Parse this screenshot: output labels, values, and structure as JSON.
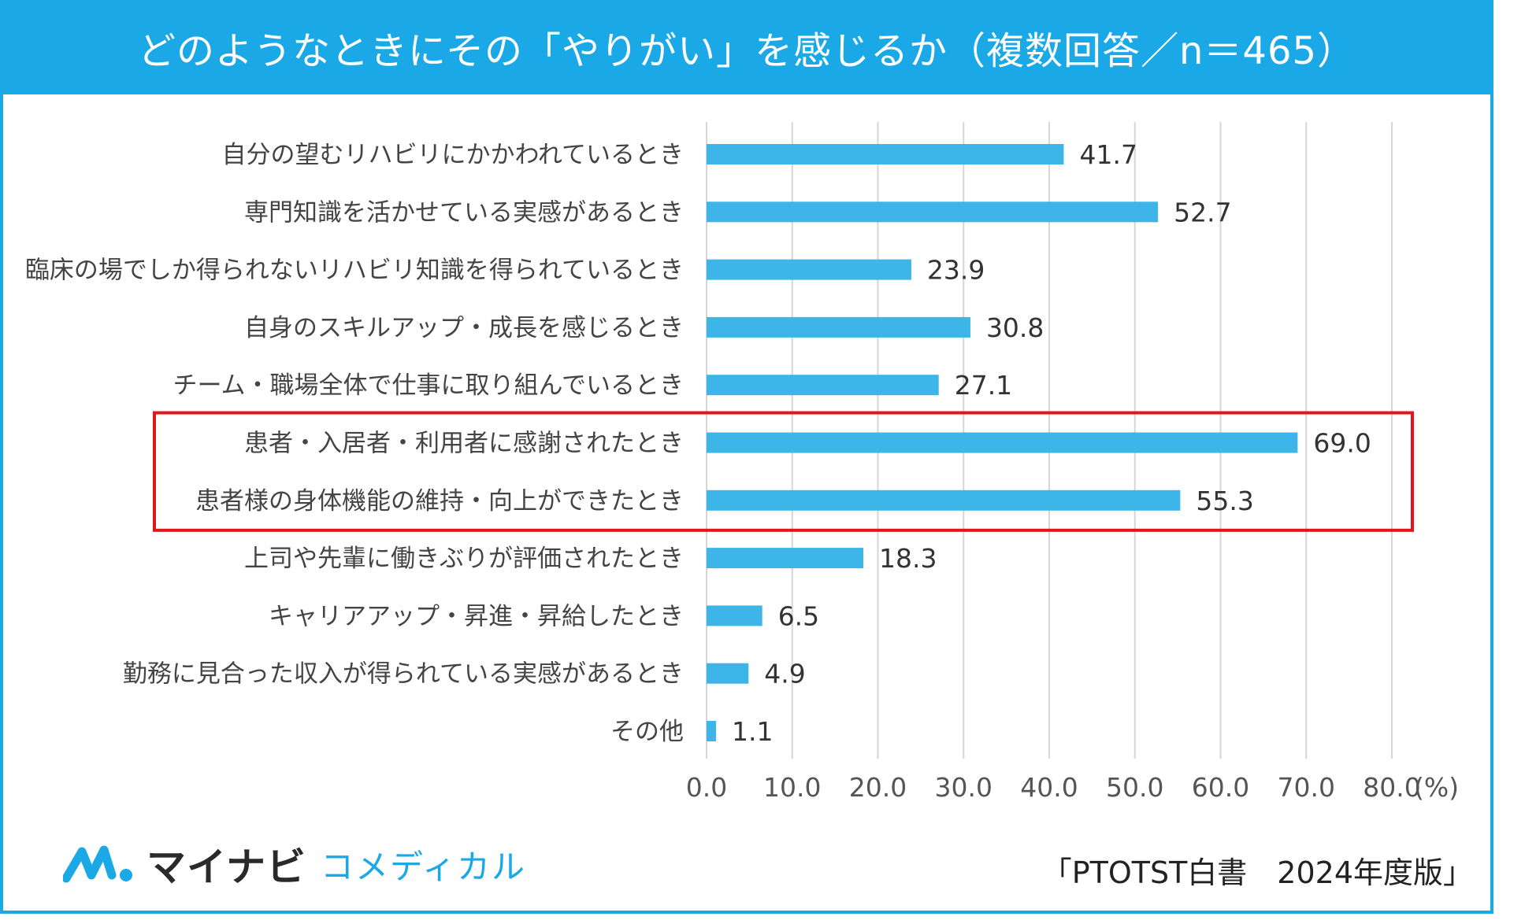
{
  "title": "どのようなときにその「やりがい」を感じるか（複数回答／n＝465）",
  "colors": {
    "bar": "#3db5e9",
    "header": "#1aa9e6",
    "highlight": "#e0161b",
    "grid": "#d6d6d6"
  },
  "chart_data": {
    "type": "bar",
    "orientation": "horizontal",
    "categories": [
      "自分の望むリハビリにかかわれているとき",
      "専門知識を活かせている実感があるとき",
      "臨床の場でしか得られないリハビリ知識を得られているとき",
      "自身のスキルアップ・成長を感じるとき",
      "チーム・職場全体で仕事に取り組んでいるとき",
      "患者・入居者・利用者に感謝されたとき",
      "患者様の身体機能の維持・向上ができたとき",
      "上司や先輩に働きぶりが評価されたとき",
      "キャリアアップ・昇進・昇給したとき",
      "勤務に見合った収入が得られている実感があるとき",
      "その他"
    ],
    "values": [
      41.7,
      52.7,
      23.9,
      30.8,
      27.1,
      69.0,
      55.3,
      18.3,
      6.5,
      4.9,
      1.1
    ],
    "value_labels": [
      "41.7",
      "52.7",
      "23.9",
      "30.8",
      "27.1",
      "69.0",
      "55.3",
      "18.3",
      "6.5",
      "4.9",
      "1.1"
    ],
    "xlim": [
      0,
      80
    ],
    "xticks": [
      "0.0",
      "10.0",
      "20.0",
      "30.0",
      "40.0",
      "50.0",
      "60.0",
      "70.0",
      "80.0"
    ],
    "unit_label": "(%)",
    "grid": true,
    "highlighted_categories": [
      5,
      6
    ]
  },
  "footer": {
    "logo_main": "マイナビ",
    "logo_sub": "コメディカル",
    "source": "「PTOTST白書　2024年度版」"
  }
}
